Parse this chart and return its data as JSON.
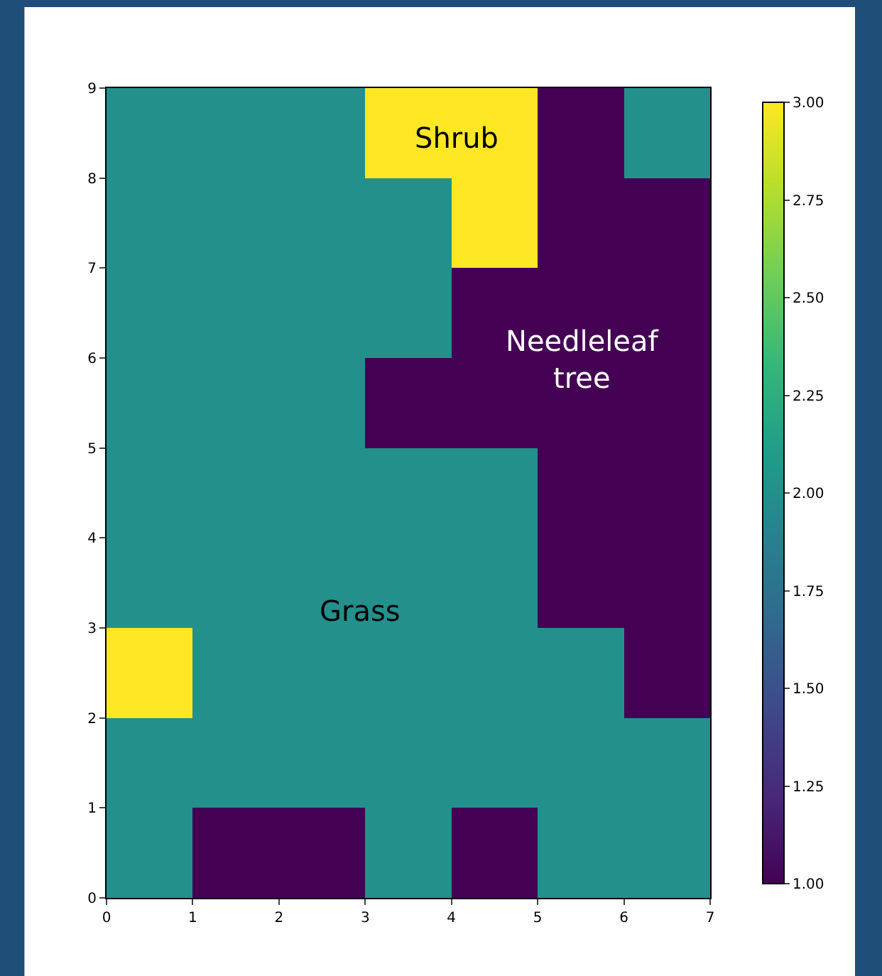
{
  "chart_data": {
    "type": "heatmap",
    "cells": [
      [
        2,
        2,
        2,
        3,
        3,
        1,
        2
      ],
      [
        2,
        2,
        2,
        2,
        3,
        1,
        1
      ],
      [
        2,
        2,
        2,
        2,
        1,
        1,
        1
      ],
      [
        2,
        2,
        2,
        1,
        1,
        1,
        1
      ],
      [
        2,
        2,
        2,
        2,
        2,
        1,
        1
      ],
      [
        2,
        2,
        2,
        2,
        2,
        1,
        1
      ],
      [
        3,
        2,
        2,
        2,
        2,
        2,
        1
      ],
      [
        2,
        2,
        2,
        2,
        2,
        2,
        2
      ],
      [
        2,
        1,
        1,
        2,
        1,
        2,
        2
      ]
    ],
    "xlim": [
      0,
      7
    ],
    "xticks": [
      0,
      1,
      2,
      3,
      4,
      5,
      6,
      7
    ],
    "ylim": [
      0,
      9
    ],
    "yticks": [
      0,
      1,
      2,
      3,
      4,
      5,
      6,
      7,
      8,
      9
    ],
    "clim": [
      1,
      3
    ],
    "cticks": [
      {
        "value": 1,
        "label": "1.00"
      },
      {
        "value": 1.25,
        "label": "1.25"
      },
      {
        "value": 1.5,
        "label": "1.50"
      },
      {
        "value": 1.75,
        "label": "1.75"
      },
      {
        "value": 2,
        "label": "2.00"
      },
      {
        "value": 2.25,
        "label": "2.25"
      },
      {
        "value": 2.5,
        "label": "2.50"
      },
      {
        "value": 2.75,
        "label": "2.75"
      },
      {
        "value": 3,
        "label": "3.00"
      }
    ],
    "annotations": [
      "Shrub",
      "Needleleaf\ntree",
      "Grass"
    ]
  }
}
